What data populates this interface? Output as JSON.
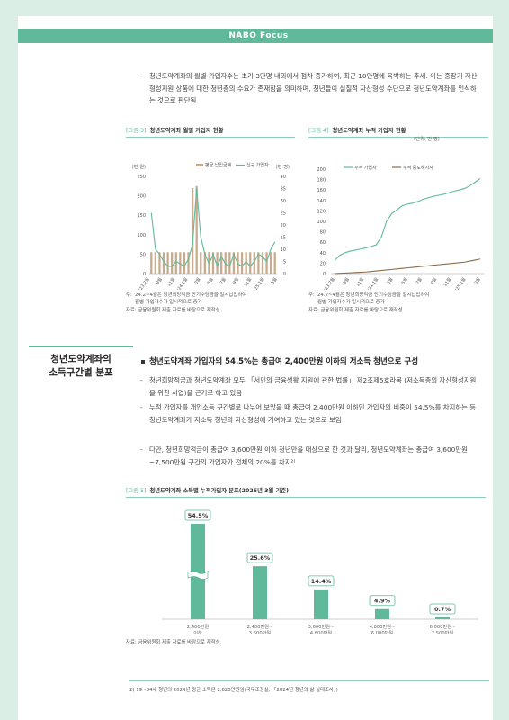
{
  "header": {
    "logo": "NABO Focus"
  },
  "intro_bullet": "청년도약계좌의 월별 가입자수는 초기 3만명 내외에서 점차 증가하여, 최근 10만명에 육박하는 추세. 이는 중장기 자산형성지원 상품에 대한 청년층의 수요가 존재함을 의미하며, 청년들이 실질적 자산형성 수단으로 청년도약계좌를 인식하는 것으로 판단됨",
  "fig3": {
    "tag": "[그림 3]",
    "title": "청년도약계좌 월별 가입자 현황",
    "left_unit": "(만 원)",
    "right_unit": "(만 명)",
    "legend_bar": "평균 납입금액",
    "legend_line": "신규 가입자",
    "note1": "주: '24.2~4월은 청년희망적금 만기수령금을 일시납입하여",
    "note2": "월별 가입자수가 일시적으로 증가",
    "source": "자료: 금융위원회 제출 자료를 바탕으로 재작성"
  },
  "fig4": {
    "tag": "[그림 4]",
    "title": "청년도약계좌 누적 가입자 현황",
    "unit": "(단위: 만 명)",
    "legend_a": "누적 가입자",
    "legend_b": "누적 중도해지자",
    "note1": "주: '24.2~4월은 청년희망적금 만기수령금을 일시납입하여",
    "note2": "월별 가입자수가 일시적으로 증가",
    "source": "자료: 금융위원회 제출 자료를 바탕으로 재작성"
  },
  "section": {
    "side_title_1": "청년도약계좌의",
    "side_title_2": "소득구간별 분포",
    "headline": "청년도약계좌 가입자의 54.5%는 총급여 2,400만원 이하의 저소득 청년으로 구성",
    "bullets": [
      "청년희망적금과 청년도약계좌 모두 「서민의 금융생활 지원에 관한 법률」 제2조제5호라목 (저소득층의 자산형성지원을 위한 사업)을 근거로 하고 있음",
      "누적 가입자를 개인소득 구간별로 나누어 보았을 때 총급여 2,400만원 이하인 가입자의 비중이 54.5%를 차지하는 등 청년도약계좌가 저소득 청년의 자산형성에 기여하고 있는 것으로 보임",
      "다만, 청년희망적금이 총급여 3,600만원 이하 청년만을 대상으로 한 것과 달리, 청년도약계좌는 총급여 3,600만원~7,500만원 구간의 가입자가 전체의 20%를 차지²⁾"
    ]
  },
  "fig5": {
    "tag": "[그림 5]",
    "title": "청년도약계좌 소득별 누적가입자 분포(2025년 3월 기준)",
    "source": "자료: 금융위원회 제출 자료를 바탕으로 재작성"
  },
  "footnote": "2)  19~34세 청년의 2024년 평균 소득은 2,625만원임(국무조정실, 「2024년 청년의 삶 실태조사」)",
  "colors": {
    "accent": "#5fb99a",
    "bar_tan": "#c8ab8c",
    "line_dark": "#8a6c4d"
  },
  "chart_data": [
    {
      "type": "bar",
      "title": "청년도약계좌 월별 가입자 현황",
      "ylabel": "(만 원)",
      "y2label": "(만 명)",
      "ylim": [
        0,
        250
      ],
      "y2lim": [
        0,
        40
      ],
      "yticks": [
        0,
        50,
        100,
        150,
        200,
        250
      ],
      "y2ticks": [
        0,
        5,
        10,
        15,
        20,
        25,
        30,
        35,
        40
      ],
      "xlabels": [
        "'23.7월",
        "9월",
        "11월",
        "'24.1월",
        "3월",
        "5월",
        "7월",
        "9월",
        "11월",
        "'25.1월",
        "3월"
      ],
      "series": [
        {
          "name": "평균 납입금액",
          "kind": "bar",
          "values": [
            55,
            55,
            55,
            55,
            55,
            55,
            55,
            55,
            55,
            55,
            220,
            225,
            55,
            55,
            55,
            55,
            55,
            55,
            55,
            55,
            55,
            55,
            55,
            55,
            55,
            55,
            55,
            55,
            55,
            55,
            55
          ]
        },
        {
          "name": "신규 가입자",
          "kind": "line",
          "axis": "right",
          "values": [
            25,
            10,
            8,
            5,
            3,
            3,
            5,
            4,
            3,
            6,
            12,
            35,
            15,
            8,
            4,
            8,
            3,
            7,
            4,
            3,
            8,
            4,
            3,
            5,
            3,
            5,
            8,
            7,
            5,
            10,
            13
          ]
        }
      ]
    },
    {
      "type": "line",
      "title": "청년도약계좌 누적 가입자 현황",
      "ylabel": "(단위: 만 명)",
      "ylim": [
        0,
        200
      ],
      "yticks": [
        0,
        20,
        40,
        60,
        80,
        100,
        120,
        140,
        160,
        180,
        200
      ],
      "xlabels": [
        "'23.7월",
        "9월",
        "11월",
        "'24.1월",
        "3월",
        "5월",
        "7월",
        "9월",
        "11월",
        "'25.1월",
        "3월"
      ],
      "series": [
        {
          "name": "누적 가입자",
          "values": [
            25,
            35,
            40,
            43,
            45,
            47,
            49,
            52,
            55,
            70,
            100,
            115,
            122,
            130,
            133,
            135,
            138,
            142,
            145,
            148,
            150,
            152,
            155,
            158,
            160,
            163,
            168,
            175,
            182
          ]
        },
        {
          "name": "누적 중도해지자",
          "values": [
            0,
            0.5,
            1,
            1.5,
            2,
            2.5,
            3,
            4,
            5,
            6,
            7,
            8,
            9,
            10,
            11,
            12,
            13,
            14,
            15,
            16,
            17,
            18,
            19,
            20,
            21,
            22,
            24,
            26,
            28
          ]
        }
      ]
    },
    {
      "type": "bar",
      "title": "청년도약계좌 소득별 누적가입자 분포(2025년 3월 기준)",
      "categories": [
        "2,400만원 이하",
        "2,400만원~ 3,600만원",
        "3,600만원~ 4,800만원",
        "4,800만원~ 6,000만원",
        "6,000만원~ 7,500만원"
      ],
      "cat_line1": [
        "2,400만원",
        "2,400만원~",
        "3,600만원~",
        "4,800만원~",
        "6,000만원~"
      ],
      "cat_line2": [
        "이하",
        "3,600만원",
        "4,800만원",
        "6,000만원",
        "7,500만원"
      ],
      "values": [
        54.5,
        25.6,
        14.4,
        4.9,
        0.7
      ],
      "labels": [
        "54.5%",
        "25.6%",
        "14.4%",
        "4.9%",
        "0.7%"
      ],
      "axis_break": true
    }
  ]
}
